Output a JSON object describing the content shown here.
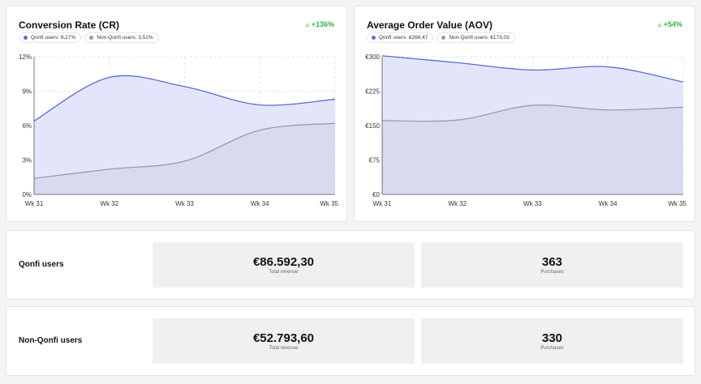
{
  "colors": {
    "qonfi": "#5a6ad6",
    "non_qonfi": "#9a9aa8",
    "qonfi_fill": "#e3e6fb",
    "non_qonfi_fill": "#d6d7ec",
    "positive": "#2eb34a"
  },
  "charts": {
    "cr": {
      "title": "Conversion Rate (CR)",
      "change": "+136%",
      "legend": [
        "Qonfi users: 8,27%",
        "Non-Qonfi users: 3,51%"
      ]
    },
    "aov": {
      "title": "Average Order Value (AOV)",
      "change": "+54%",
      "legend": [
        "Qonfi users: €266,47",
        "Non-Qonfi users: €173,03"
      ]
    }
  },
  "chart_data": [
    {
      "type": "area",
      "title": "Conversion Rate (CR)",
      "categories": [
        "Wk 31",
        "Wk 32",
        "Wk 33",
        "Wk 34",
        "Wk 35"
      ],
      "y_ticks": [
        0,
        3,
        6,
        9,
        12
      ],
      "y_tick_labels": [
        "0%",
        "3%",
        "6%",
        "9%",
        "12%"
      ],
      "ylim": [
        0,
        12
      ],
      "grid": true,
      "series": [
        {
          "name": "Qonfi users",
          "values": [
            6.4,
            10.2,
            9.4,
            7.8,
            8.3
          ]
        },
        {
          "name": "Non-Qonfi users",
          "values": [
            1.4,
            2.2,
            2.9,
            5.6,
            6.2
          ]
        }
      ]
    },
    {
      "type": "area",
      "title": "Average Order Value (AOV)",
      "categories": [
        "Wk 31",
        "Wk 32",
        "Wk 33",
        "Wk 34",
        "Wk 35"
      ],
      "y_ticks": [
        0,
        75,
        150,
        225,
        300
      ],
      "y_tick_labels": [
        "€0",
        "€75",
        "€150",
        "€225",
        "€300"
      ],
      "ylim": [
        0,
        300
      ],
      "grid": true,
      "series": [
        {
          "name": "Qonfi users",
          "values": [
            302,
            287,
            271,
            278,
            245
          ]
        },
        {
          "name": "Non-Qonfi users",
          "values": [
            161,
            162,
            194,
            184,
            190
          ]
        }
      ]
    }
  ],
  "groups": {
    "qonfi": {
      "label": "Qonfi users",
      "revenue": "€86.592,30",
      "revenue_caption": "Total revenue",
      "purchases": "363",
      "purchases_caption": "Purchases"
    },
    "non_qonfi": {
      "label": "Non-Qonfi users",
      "revenue": "€52.793,60",
      "revenue_caption": "Total revenue",
      "purchases": "330",
      "purchases_caption": "Purchases"
    }
  }
}
